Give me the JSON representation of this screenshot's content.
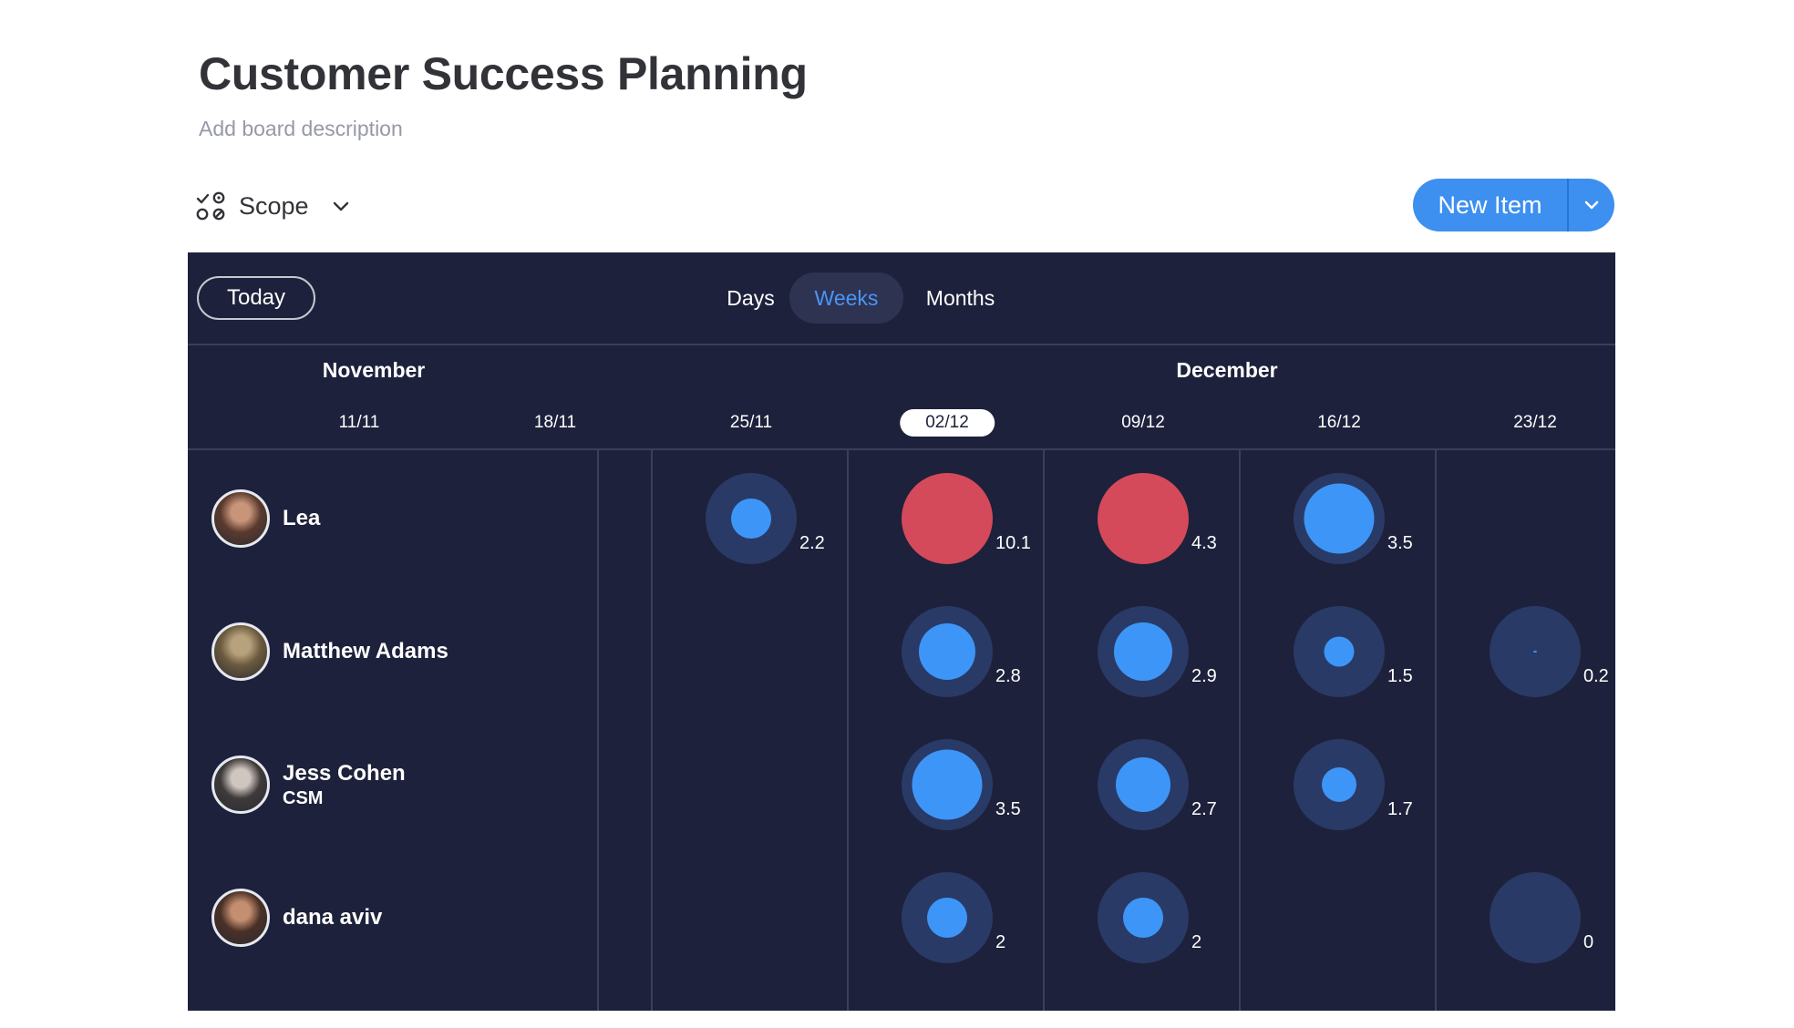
{
  "board": {
    "title": "Customer Success Planning",
    "description": "Add board description"
  },
  "toolbar": {
    "scope_label": "Scope",
    "scope_icon": "scope-icon",
    "new_item_label": "New Item"
  },
  "workload": {
    "today_label": "Today",
    "view_tabs": [
      {
        "label": "Days",
        "active": false
      },
      {
        "label": "Weeks",
        "active": true
      },
      {
        "label": "Months",
        "active": false
      }
    ],
    "months": [
      "November",
      "December"
    ],
    "weeks": [
      "11/11",
      "18/11",
      "25/11",
      "02/12",
      "09/12",
      "16/12",
      "23/12"
    ],
    "current_week": "02/12",
    "colors": {
      "background": "#1d213b",
      "capacity": "#2a3a66",
      "load": "#3d96f7",
      "overloaded": "#d44a5a"
    },
    "people": [
      {
        "name": "Lea",
        "role": "",
        "cells": [
          {
            "week": "25/11",
            "value": "2.2",
            "fill": 0.5,
            "over": false
          },
          {
            "week": "02/12",
            "value": "10.1",
            "fill": 1.0,
            "over": true
          },
          {
            "week": "09/12",
            "value": "4.3",
            "fill": 1.0,
            "over": true
          },
          {
            "week": "16/12",
            "value": "3.5",
            "fill": 0.88,
            "over": false
          }
        ]
      },
      {
        "name": "Matthew Adams",
        "role": "",
        "cells": [
          {
            "week": "02/12",
            "value": "2.8",
            "fill": 0.7,
            "over": false
          },
          {
            "week": "09/12",
            "value": "2.9",
            "fill": 0.73,
            "over": false
          },
          {
            "week": "16/12",
            "value": "1.5",
            "fill": 0.38,
            "over": false
          },
          {
            "week": "23/12",
            "value": "0.2",
            "fill": 0.05,
            "over": false
          }
        ]
      },
      {
        "name": "Jess Cohen",
        "role": "CSM",
        "cells": [
          {
            "week": "02/12",
            "value": "3.5",
            "fill": 0.88,
            "over": false
          },
          {
            "week": "09/12",
            "value": "2.7",
            "fill": 0.68,
            "over": false
          },
          {
            "week": "16/12",
            "value": "1.7",
            "fill": 0.43,
            "over": false
          }
        ]
      },
      {
        "name": "dana aviv",
        "role": "",
        "cells": [
          {
            "week": "02/12",
            "value": "2",
            "fill": 0.5,
            "over": false
          },
          {
            "week": "09/12",
            "value": "2",
            "fill": 0.5,
            "over": false
          },
          {
            "week": "23/12",
            "value": "0",
            "fill": 0.0,
            "over": false
          }
        ]
      }
    ]
  }
}
